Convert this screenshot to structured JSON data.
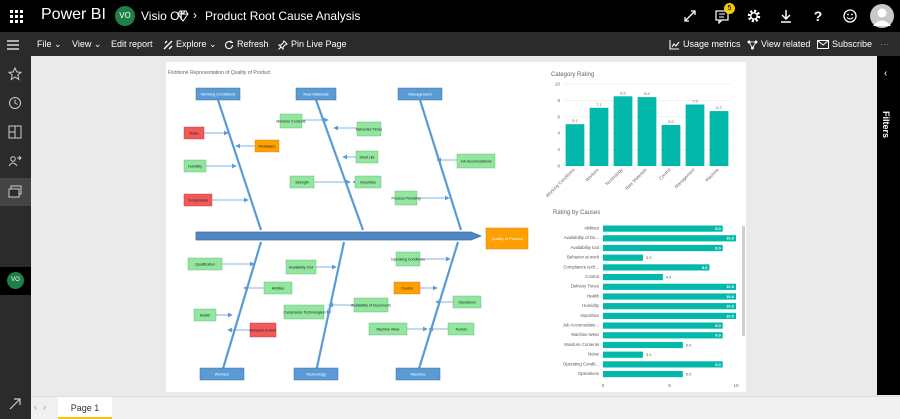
{
  "app": {
    "name": "Power BI"
  },
  "header": {
    "workspace_initials": "VO",
    "workspace_name": "Visio OI",
    "report_title": "Product Root Cause Analysis",
    "notification_count": "5",
    "icons": [
      "app-launcher-icon",
      "expand-icon",
      "notifications-icon",
      "settings-icon",
      "download-icon",
      "help-icon",
      "feedback-icon",
      "user-icon"
    ]
  },
  "commandbar": {
    "file": "File",
    "view": "View",
    "edit_report": "Edit report",
    "explore": "Explore",
    "refresh": "Refresh",
    "pin_live_page": "Pin Live Page",
    "usage_metrics": "Usage metrics",
    "view_related": "View related",
    "subscribe": "Subscribe",
    "more": "···"
  },
  "nav": {
    "workspace_initials": "VO"
  },
  "filters": {
    "label": "Filters"
  },
  "pages": {
    "current": "Page 1"
  },
  "fishbone": {
    "title": "Fishbone Representation of Quality of Product",
    "head": "Quality of Product",
    "categories": [
      "Working Conditions",
      "Raw Materials",
      "Management",
      "Workers",
      "Technology",
      "Machine"
    ],
    "causes": {
      "noise": "Noise",
      "workplace": "Workplace",
      "humidity": "Humidity",
      "temperature": "Temperature",
      "moisture_contents": "Moisture Contents",
      "deliveries_times": "Deliveries Times",
      "shelf_life": "Shelf Life",
      "strength": "Strength",
      "impurities": "Impurities",
      "job_accomodations": "Job Accomodations",
      "process_providing": "Process Providing",
      "qualification": "Qualification",
      "availability_tool": "Availability Tool",
      "abilities": "Abilities",
      "health": "Health",
      "compliance_technologies": "Compliance Technologies",
      "behavior_at_work": "Behavior at work",
      "operating_conditions": "Operating Conditions",
      "control": "Control",
      "operations": "Operations",
      "availability_of_documents": "Availability of Documents",
      "machine_wear": "Machine Wear",
      "toolset": "Toolset"
    }
  },
  "colors": {
    "teal": "#01b8aa",
    "fish_blue": "#5b9bd5",
    "fish_blue_dark": "#41719c",
    "cause_green": "#92e6a0",
    "cause_red": "#f25a5a",
    "cause_orange": "#ffa000",
    "pbi_yellow": "#f2c811"
  },
  "chart_data": [
    {
      "type": "bar",
      "title": "Category Rating",
      "categories": [
        "Working Conditions",
        "Workers",
        "Technology",
        "Raw Materials",
        "Control",
        "Management",
        "Machine"
      ],
      "values": [
        5.1,
        7.1,
        8.5,
        8.4,
        5.0,
        7.5,
        6.7
      ],
      "ylim": [
        0,
        10
      ],
      "yticks": [
        0,
        2,
        4,
        6,
        8,
        10
      ],
      "data_labels": [
        "5.1",
        "7.1",
        "8.5",
        "8.4",
        "5.0",
        "7.5",
        "6.7"
      ]
    },
    {
      "type": "bar",
      "orientation": "horizontal",
      "title": "Rating by Causes",
      "categories": [
        "Abilities",
        "Availability of Do...",
        "Availability tool",
        "Behavior at work",
        "Compliance tech...",
        "Control",
        "Delivery Times",
        "Health",
        "Humidity",
        "Impurities",
        "Job Accomodatio...",
        "Machine Wear",
        "Moisture Contents",
        "Noise",
        "Operating Condit...",
        "Operations"
      ],
      "values": [
        9.0,
        10.0,
        9.0,
        3.0,
        8.0,
        4.5,
        10.0,
        10.0,
        10.0,
        10.0,
        9.0,
        9.0,
        6.0,
        3.0,
        9.0,
        6.0
      ],
      "data_labels": [
        "9.0",
        "10.0",
        "9.0",
        "3.0",
        "8.0",
        "4.5",
        "10.0",
        "10.0",
        "10.0",
        "10.0",
        "9.0",
        "9.0",
        "6.0",
        "3.0",
        "9.0",
        "6.0"
      ],
      "xlim": [
        0,
        10
      ],
      "xticks": [
        "0",
        "5",
        "10"
      ]
    }
  ]
}
